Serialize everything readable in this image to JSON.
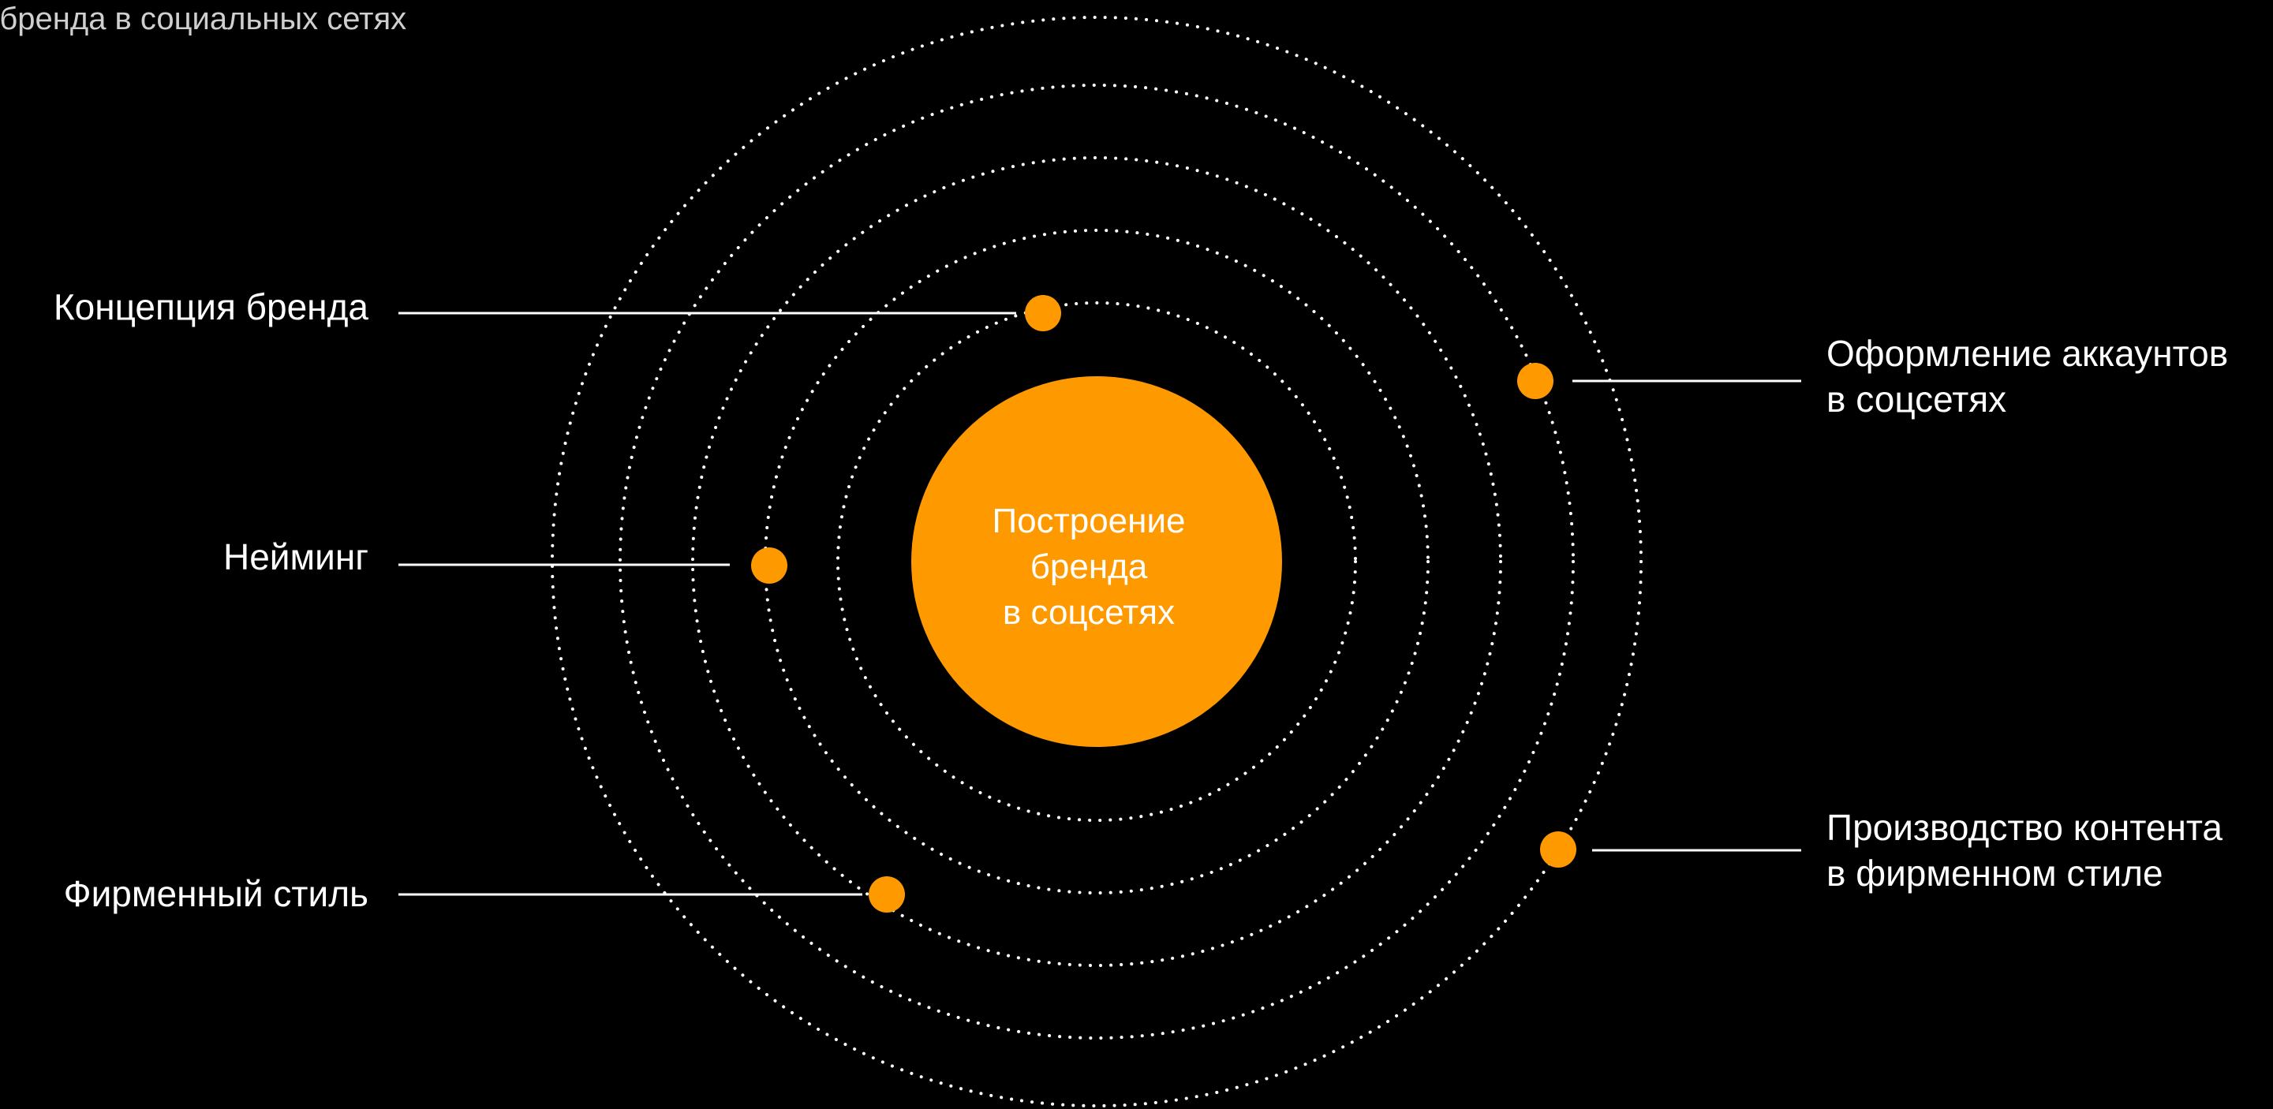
{
  "header": {
    "caption": "е бренда в социальных сетях"
  },
  "center": {
    "lines": [
      "Построение",
      "бренда",
      "в соцсетях"
    ]
  },
  "nodes": [
    {
      "id": "concept",
      "lines": [
        "Концепция бренда"
      ],
      "side": "left"
    },
    {
      "id": "naming",
      "lines": [
        "Нейминг"
      ],
      "side": "left"
    },
    {
      "id": "style",
      "lines": [
        "Фирменный стиль"
      ],
      "side": "left"
    },
    {
      "id": "accounts",
      "lines": [
        "Оформление аккаунтов",
        "в соцсетях"
      ],
      "side": "right"
    },
    {
      "id": "content",
      "lines": [
        "Производство контента",
        "в фирменном стиле"
      ],
      "side": "right"
    }
  ],
  "colors": {
    "background": "#000000",
    "accent": "#FF9900",
    "ring": "#FFFFFF",
    "text": "#FFFFFF"
  }
}
